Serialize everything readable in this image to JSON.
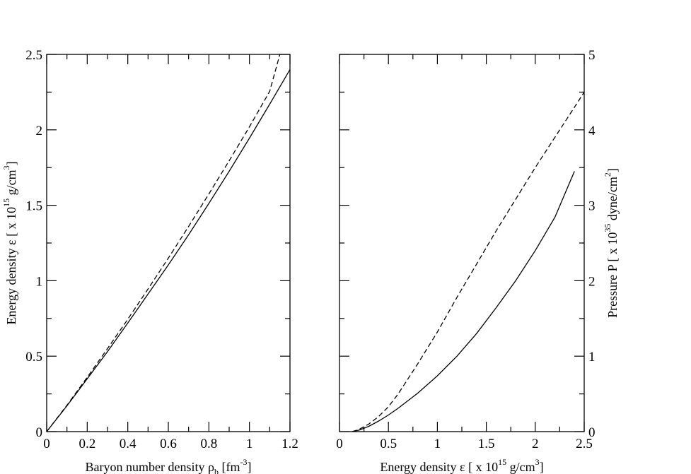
{
  "chart_data": [
    {
      "type": "line",
      "xlabel": {
        "main": "Baryon number density ρ",
        "sub": "b",
        "unit_open": " [fm",
        "unit_sup": "-3",
        "unit_close": "]"
      },
      "ylabel": {
        "main": "Energy density ε [ x 10",
        "sup": "15",
        "mid": " g/cm",
        "sup2": "3",
        "end": "]"
      },
      "xlim": [
        0,
        1.2
      ],
      "ylim": [
        0,
        2.5
      ],
      "x_ticks": [
        0,
        0.2,
        0.4,
        0.6,
        0.8,
        1,
        1.2
      ],
      "x_tick_labels": [
        "0",
        "0.2",
        "0.4",
        "0.6",
        "0.8",
        "1",
        "1.2"
      ],
      "y_ticks": [
        0,
        0.5,
        1,
        1.5,
        2,
        2.5
      ],
      "y_tick_labels": [
        "0",
        "0.5",
        "1",
        "1.5",
        "2",
        "2.5"
      ],
      "y_axis_side": "left",
      "grid": false,
      "legend": "none",
      "series": [
        {
          "style": "solid",
          "x": [
            0,
            0.1,
            0.2,
            0.3,
            0.4,
            0.5,
            0.6,
            0.7,
            0.8,
            0.9,
            1.0,
            1.1,
            1.2
          ],
          "y": [
            0,
            0.171,
            0.35,
            0.53,
            0.72,
            0.912,
            1.105,
            1.305,
            1.512,
            1.725,
            1.945,
            2.17,
            2.4
          ]
        },
        {
          "style": "dashed",
          "x": [
            0,
            0.1,
            0.2,
            0.3,
            0.4,
            0.5,
            0.6,
            0.7,
            0.8,
            0.9,
            1.0,
            1.1,
            1.15
          ],
          "y": [
            0,
            0.175,
            0.36,
            0.55,
            0.745,
            0.945,
            1.15,
            1.36,
            1.575,
            1.795,
            2.02,
            2.255,
            2.5
          ]
        }
      ]
    },
    {
      "type": "line",
      "xlabel": {
        "main": "Energy density ε [ x 10",
        "sup": "15",
        "mid": " g/cm",
        "sup2": "3",
        "end": "]"
      },
      "ylabel": {
        "main": "Pressure P [ x 10",
        "sup": "35",
        "mid": " dyne/cm",
        "sup2": "2",
        "end": "]"
      },
      "xlim": [
        0,
        2.5
      ],
      "ylim": [
        0,
        5
      ],
      "x_ticks": [
        0,
        0.5,
        1,
        1.5,
        2,
        2.5
      ],
      "x_tick_labels": [
        "0",
        "0.5",
        "1",
        "1.5",
        "2",
        "2.5"
      ],
      "y_ticks": [
        0,
        1,
        2,
        3,
        4,
        5
      ],
      "y_tick_labels": [
        "0",
        "1",
        "2",
        "3",
        "4",
        "5"
      ],
      "y_axis_side": "right",
      "grid": false,
      "legend": "none",
      "series": [
        {
          "style": "solid",
          "x": [
            0.13,
            0.2,
            0.3,
            0.4,
            0.5,
            0.6,
            0.8,
            1.0,
            1.2,
            1.4,
            1.6,
            1.8,
            2.0,
            2.2,
            2.4
          ],
          "y": [
            0,
            0.02,
            0.07,
            0.14,
            0.22,
            0.31,
            0.51,
            0.74,
            1.0,
            1.3,
            1.64,
            2.0,
            2.4,
            2.84,
            3.45
          ]
        },
        {
          "style": "dashed",
          "x": [
            0.13,
            0.2,
            0.3,
            0.4,
            0.5,
            0.6,
            0.8,
            1.0,
            1.2,
            1.4,
            1.6,
            1.8,
            2.0,
            2.2,
            2.4,
            2.5
          ],
          "y": [
            0,
            0.03,
            0.1,
            0.2,
            0.33,
            0.5,
            0.9,
            1.32,
            1.78,
            2.22,
            2.66,
            3.08,
            3.5,
            3.9,
            4.3,
            4.5
          ]
        }
      ]
    }
  ]
}
